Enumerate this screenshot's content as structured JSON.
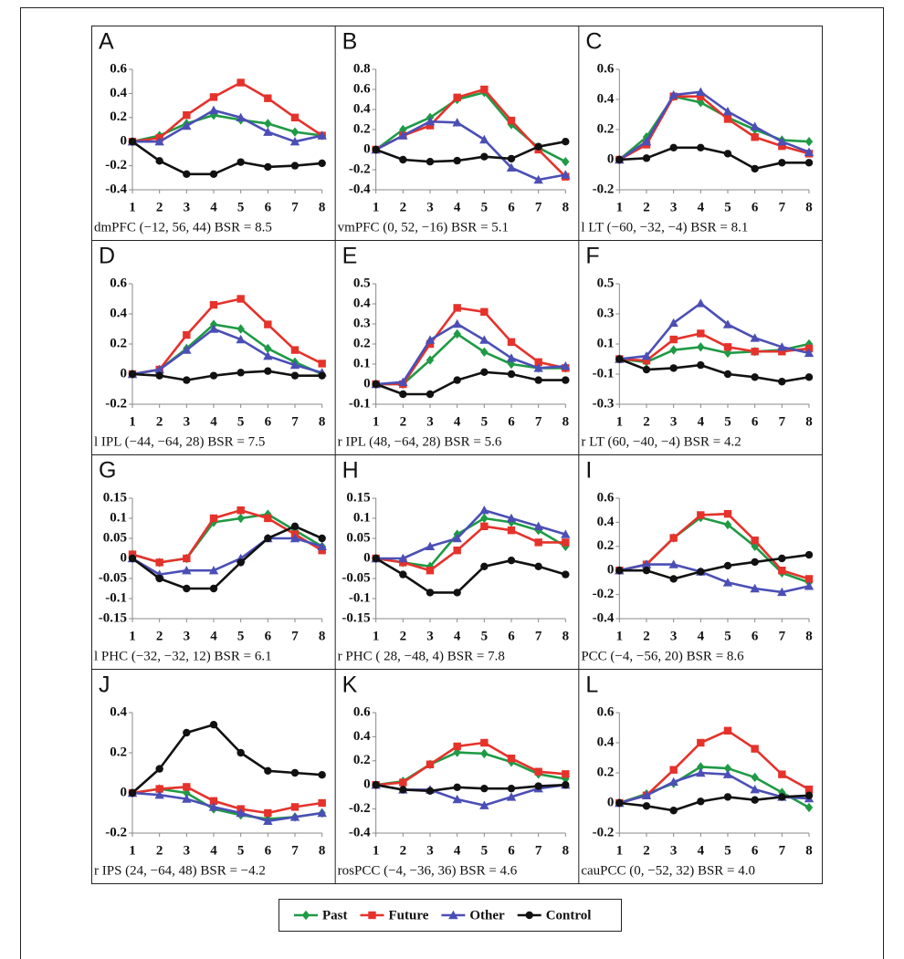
{
  "chart_data": [
    {
      "type": "line",
      "title": "A",
      "caption": "dmPFC (−12, 56, 44) BSR = 8.5",
      "x": [
        1,
        2,
        3,
        4,
        5,
        6,
        7,
        8
      ],
      "xlim": [
        1,
        8
      ],
      "xticks": [
        1,
        2,
        3,
        4,
        5,
        6,
        7,
        8
      ],
      "ylim": [
        -0.4,
        0.6
      ],
      "yticks": [
        -0.4,
        -0.2,
        0,
        0.2,
        0.4,
        0.6
      ],
      "series": [
        {
          "name": "Past",
          "color": "#1f9a45",
          "values": [
            0,
            0.05,
            0.15,
            0.22,
            0.18,
            0.15,
            0.08,
            0.05
          ]
        },
        {
          "name": "Future",
          "color": "#e5322b",
          "values": [
            0,
            0.03,
            0.22,
            0.37,
            0.49,
            0.36,
            0.2,
            0.05
          ]
        },
        {
          "name": "Other",
          "color": "#4b4fb5",
          "values": [
            0,
            0.0,
            0.13,
            0.26,
            0.2,
            0.08,
            0.0,
            0.05
          ]
        },
        {
          "name": "Control",
          "color": "#111111",
          "values": [
            0,
            -0.16,
            -0.27,
            -0.27,
            -0.17,
            -0.21,
            -0.2,
            -0.18
          ]
        }
      ]
    },
    {
      "type": "line",
      "title": "B",
      "caption": "vmPFC (0, 52, −16) BSR = 5.1",
      "x": [
        1,
        2,
        3,
        4,
        5,
        6,
        7,
        8
      ],
      "xlim": [
        1,
        8
      ],
      "xticks": [
        1,
        2,
        3,
        4,
        5,
        6,
        7,
        8
      ],
      "ylim": [
        -0.4,
        0.8
      ],
      "yticks": [
        -0.4,
        -0.2,
        0,
        0.2,
        0.4,
        0.6,
        0.8
      ],
      "series": [
        {
          "name": "Past",
          "color": "#1f9a45",
          "values": [
            0,
            0.2,
            0.32,
            0.5,
            0.57,
            0.25,
            0.02,
            -0.12
          ]
        },
        {
          "name": "Future",
          "color": "#e5322b",
          "values": [
            0,
            0.14,
            0.24,
            0.52,
            0.6,
            0.29,
            0.0,
            -0.27
          ]
        },
        {
          "name": "Other",
          "color": "#4b4fb5",
          "values": [
            0,
            0.14,
            0.28,
            0.27,
            0.1,
            -0.18,
            -0.3,
            -0.25
          ]
        },
        {
          "name": "Control",
          "color": "#111111",
          "values": [
            0,
            -0.1,
            -0.12,
            -0.11,
            -0.07,
            -0.09,
            0.03,
            0.08
          ]
        }
      ]
    },
    {
      "type": "line",
      "title": "C",
      "caption": "l LT (−60, −32, −4) BSR = 8.1",
      "x": [
        1,
        2,
        3,
        4,
        5,
        6,
        7,
        8
      ],
      "xlim": [
        1,
        8
      ],
      "xticks": [
        1,
        2,
        3,
        4,
        5,
        6,
        7,
        8
      ],
      "ylim": [
        -0.2,
        0.6
      ],
      "yticks": [
        -0.2,
        0,
        0.2,
        0.4,
        0.6
      ],
      "series": [
        {
          "name": "Past",
          "color": "#1f9a45",
          "values": [
            0,
            0.15,
            0.42,
            0.38,
            0.28,
            0.2,
            0.13,
            0.12
          ]
        },
        {
          "name": "Future",
          "color": "#e5322b",
          "values": [
            0,
            0.1,
            0.42,
            0.42,
            0.27,
            0.15,
            0.09,
            0.04
          ]
        },
        {
          "name": "Other",
          "color": "#4b4fb5",
          "values": [
            0,
            0.12,
            0.43,
            0.45,
            0.32,
            0.22,
            0.12,
            0.05
          ]
        },
        {
          "name": "Control",
          "color": "#111111",
          "values": [
            0,
            0.01,
            0.08,
            0.08,
            0.04,
            -0.06,
            -0.02,
            -0.02
          ]
        }
      ]
    },
    {
      "type": "line",
      "title": "D",
      "caption": "l IPL (−44, −64, 28) BSR = 7.5",
      "x": [
        1,
        2,
        3,
        4,
        5,
        6,
        7,
        8
      ],
      "xlim": [
        1,
        8
      ],
      "xticks": [
        1,
        2,
        3,
        4,
        5,
        6,
        7,
        8
      ],
      "ylim": [
        -0.2,
        0.6
      ],
      "yticks": [
        -0.2,
        0,
        0.2,
        0.4,
        0.6
      ],
      "series": [
        {
          "name": "Past",
          "color": "#1f9a45",
          "values": [
            0,
            0.03,
            0.17,
            0.33,
            0.3,
            0.17,
            0.08,
            0.0
          ]
        },
        {
          "name": "Future",
          "color": "#e5322b",
          "values": [
            0,
            0.03,
            0.26,
            0.46,
            0.5,
            0.33,
            0.16,
            0.07
          ]
        },
        {
          "name": "Other",
          "color": "#4b4fb5",
          "values": [
            0,
            0.03,
            0.16,
            0.3,
            0.23,
            0.12,
            0.06,
            0.01
          ]
        },
        {
          "name": "Control",
          "color": "#111111",
          "values": [
            0,
            -0.01,
            -0.04,
            -0.01,
            0.01,
            0.02,
            -0.01,
            -0.01
          ]
        }
      ]
    },
    {
      "type": "line",
      "title": "E",
      "caption": "r IPL (48, −64, 28) BSR = 5.6",
      "x": [
        1,
        2,
        3,
        4,
        5,
        6,
        7,
        8
      ],
      "xlim": [
        1,
        8
      ],
      "xticks": [
        1,
        2,
        3,
        4,
        5,
        6,
        7,
        8
      ],
      "ylim": [
        -0.1,
        0.5
      ],
      "yticks": [
        -0.1,
        0,
        0.1,
        0.2,
        0.3,
        0.4,
        0.5
      ],
      "series": [
        {
          "name": "Past",
          "color": "#1f9a45",
          "values": [
            0,
            0.0,
            0.12,
            0.25,
            0.16,
            0.1,
            0.08,
            0.08
          ]
        },
        {
          "name": "Future",
          "color": "#e5322b",
          "values": [
            0,
            0.0,
            0.2,
            0.38,
            0.36,
            0.21,
            0.11,
            0.08
          ]
        },
        {
          "name": "Other",
          "color": "#4b4fb5",
          "values": [
            0,
            0.01,
            0.22,
            0.3,
            0.22,
            0.13,
            0.08,
            0.09
          ]
        },
        {
          "name": "Control",
          "color": "#111111",
          "values": [
            0,
            -0.05,
            -0.05,
            0.02,
            0.06,
            0.05,
            0.02,
            0.02
          ]
        }
      ]
    },
    {
      "type": "line",
      "title": "F",
      "caption": "r LT (60, −40, −4) BSR = 4.2",
      "x": [
        1,
        2,
        3,
        4,
        5,
        6,
        7,
        8
      ],
      "xlim": [
        1,
        8
      ],
      "xticks": [
        1,
        2,
        3,
        4,
        5,
        6,
        7,
        8
      ],
      "ylim": [
        -0.3,
        0.5
      ],
      "yticks": [
        -0.3,
        -0.1,
        0.1,
        0.3,
        0.5
      ],
      "series": [
        {
          "name": "Past",
          "color": "#1f9a45",
          "values": [
            0,
            -0.02,
            0.06,
            0.08,
            0.04,
            0.05,
            0.06,
            0.1
          ]
        },
        {
          "name": "Future",
          "color": "#e5322b",
          "values": [
            0,
            -0.01,
            0.13,
            0.17,
            0.08,
            0.05,
            0.05,
            0.07
          ]
        },
        {
          "name": "Other",
          "color": "#4b4fb5",
          "values": [
            0,
            0.02,
            0.24,
            0.37,
            0.23,
            0.14,
            0.08,
            0.04
          ]
        },
        {
          "name": "Control",
          "color": "#111111",
          "values": [
            0,
            -0.07,
            -0.06,
            -0.04,
            -0.1,
            -0.12,
            -0.15,
            -0.12
          ]
        }
      ]
    },
    {
      "type": "line",
      "title": "G",
      "caption": "l PHC (−32, −32, 12) BSR = 6.1",
      "x": [
        1,
        2,
        3,
        4,
        5,
        6,
        7,
        8
      ],
      "xlim": [
        1,
        8
      ],
      "xticks": [
        1,
        2,
        3,
        4,
        5,
        6,
        7,
        8
      ],
      "ylim": [
        -0.15,
        0.15
      ],
      "yticks": [
        -0.15,
        -0.1,
        -0.05,
        0,
        0.05,
        0.1,
        0.15
      ],
      "series": [
        {
          "name": "Past",
          "color": "#1f9a45",
          "values": [
            0.01,
            -0.01,
            0.0,
            0.09,
            0.1,
            0.11,
            0.07,
            0.03
          ]
        },
        {
          "name": "Future",
          "color": "#e5322b",
          "values": [
            0.01,
            -0.01,
            0.0,
            0.1,
            0.12,
            0.1,
            0.06,
            0.02
          ]
        },
        {
          "name": "Other",
          "color": "#4b4fb5",
          "values": [
            0,
            -0.04,
            -0.03,
            -0.03,
            0.0,
            0.05,
            0.05,
            0.03
          ]
        },
        {
          "name": "Control",
          "color": "#111111",
          "values": [
            0,
            -0.05,
            -0.075,
            -0.075,
            -0.01,
            0.05,
            0.08,
            0.05
          ]
        }
      ]
    },
    {
      "type": "line",
      "title": "H",
      "caption": "r PHC ( 28, −48, 4) BSR = 7.8",
      "x": [
        1,
        2,
        3,
        4,
        5,
        6,
        7,
        8
      ],
      "xlim": [
        1,
        8
      ],
      "xticks": [
        1,
        2,
        3,
        4,
        5,
        6,
        7,
        8
      ],
      "ylim": [
        -0.15,
        0.15
      ],
      "yticks": [
        -0.15,
        -0.1,
        -0.05,
        0,
        0.05,
        0.1,
        0.15
      ],
      "series": [
        {
          "name": "Past",
          "color": "#1f9a45",
          "values": [
            0,
            -0.01,
            -0.02,
            0.06,
            0.1,
            0.09,
            0.07,
            0.03
          ]
        },
        {
          "name": "Future",
          "color": "#e5322b",
          "values": [
            0,
            -0.01,
            -0.03,
            0.02,
            0.08,
            0.07,
            0.04,
            0.04
          ]
        },
        {
          "name": "Other",
          "color": "#4b4fb5",
          "values": [
            0,
            0.0,
            0.03,
            0.05,
            0.12,
            0.1,
            0.08,
            0.06
          ]
        },
        {
          "name": "Control",
          "color": "#111111",
          "values": [
            0,
            -0.04,
            -0.085,
            -0.085,
            -0.02,
            -0.005,
            -0.02,
            -0.04
          ]
        }
      ]
    },
    {
      "type": "line",
      "title": "I",
      "caption": "PCC (−4, −56, 20) BSR = 8.6",
      "x": [
        1,
        2,
        3,
        4,
        5,
        6,
        7,
        8
      ],
      "xlim": [
        1,
        8
      ],
      "xticks": [
        1,
        2,
        3,
        4,
        5,
        6,
        7,
        8
      ],
      "ylim": [
        -0.4,
        0.6
      ],
      "yticks": [
        -0.4,
        -0.2,
        0,
        0.2,
        0.4,
        0.6
      ],
      "series": [
        {
          "name": "Past",
          "color": "#1f9a45",
          "values": [
            0,
            0.05,
            0.27,
            0.44,
            0.38,
            0.2,
            -0.02,
            -0.1
          ]
        },
        {
          "name": "Future",
          "color": "#e5322b",
          "values": [
            0,
            0.05,
            0.27,
            0.46,
            0.47,
            0.25,
            0.0,
            -0.07
          ]
        },
        {
          "name": "Other",
          "color": "#4b4fb5",
          "values": [
            0,
            0.05,
            0.05,
            -0.01,
            -0.1,
            -0.15,
            -0.18,
            -0.13
          ]
        },
        {
          "name": "Control",
          "color": "#111111",
          "values": [
            0,
            0.0,
            -0.07,
            -0.01,
            0.04,
            0.07,
            0.1,
            0.13
          ]
        }
      ]
    },
    {
      "type": "line",
      "title": "J",
      "caption": "r IPS (24, −64, 48) BSR = −4.2",
      "x": [
        1,
        2,
        3,
        4,
        5,
        6,
        7,
        8
      ],
      "xlim": [
        1,
        8
      ],
      "xticks": [
        1,
        2,
        3,
        4,
        5,
        6,
        7,
        8
      ],
      "ylim": [
        -0.2,
        0.4
      ],
      "yticks": [
        -0.2,
        0,
        0.2,
        0.4
      ],
      "series": [
        {
          "name": "Past",
          "color": "#1f9a45",
          "values": [
            0,
            0.02,
            0.0,
            -0.08,
            -0.11,
            -0.13,
            -0.12,
            -0.1
          ]
        },
        {
          "name": "Future",
          "color": "#e5322b",
          "values": [
            0,
            0.02,
            0.03,
            -0.04,
            -0.08,
            -0.1,
            -0.07,
            -0.05
          ]
        },
        {
          "name": "Other",
          "color": "#4b4fb5",
          "values": [
            0,
            -0.01,
            -0.03,
            -0.07,
            -0.1,
            -0.14,
            -0.12,
            -0.1
          ]
        },
        {
          "name": "Control",
          "color": "#111111",
          "values": [
            0,
            0.12,
            0.3,
            0.34,
            0.2,
            0.11,
            0.1,
            0.09
          ]
        }
      ]
    },
    {
      "type": "line",
      "title": "K",
      "caption": "rosPCC (−4, −36, 36) BSR = 4.6",
      "x": [
        1,
        2,
        3,
        4,
        5,
        6,
        7,
        8
      ],
      "xlim": [
        1,
        8
      ],
      "xticks": [
        1,
        2,
        3,
        4,
        5,
        6,
        7,
        8
      ],
      "ylim": [
        -0.4,
        0.6
      ],
      "yticks": [
        -0.4,
        -0.2,
        0,
        0.2,
        0.4,
        0.6
      ],
      "series": [
        {
          "name": "Past",
          "color": "#1f9a45",
          "values": [
            0,
            0.03,
            0.17,
            0.27,
            0.26,
            0.19,
            0.09,
            0.05
          ]
        },
        {
          "name": "Future",
          "color": "#e5322b",
          "values": [
            0,
            0.02,
            0.17,
            0.32,
            0.35,
            0.22,
            0.11,
            0.09
          ]
        },
        {
          "name": "Other",
          "color": "#4b4fb5",
          "values": [
            0,
            -0.04,
            -0.04,
            -0.12,
            -0.17,
            -0.1,
            -0.03,
            0.0
          ]
        },
        {
          "name": "Control",
          "color": "#111111",
          "values": [
            0,
            -0.04,
            -0.05,
            -0.02,
            -0.03,
            -0.03,
            -0.01,
            0.0
          ]
        }
      ]
    },
    {
      "type": "line",
      "title": "L",
      "caption": "cauPCC (0, −52, 32) BSR = 4.0",
      "x": [
        1,
        2,
        3,
        4,
        5,
        6,
        7,
        8
      ],
      "xlim": [
        1,
        8
      ],
      "xticks": [
        1,
        2,
        3,
        4,
        5,
        6,
        7,
        8
      ],
      "ylim": [
        -0.2,
        0.6
      ],
      "yticks": [
        -0.2,
        0,
        0.2,
        0.4,
        0.6
      ],
      "series": [
        {
          "name": "Past",
          "color": "#1f9a45",
          "values": [
            0,
            0.06,
            0.13,
            0.24,
            0.23,
            0.17,
            0.07,
            -0.03
          ]
        },
        {
          "name": "Future",
          "color": "#e5322b",
          "values": [
            0,
            0.05,
            0.22,
            0.4,
            0.48,
            0.36,
            0.19,
            0.09
          ]
        },
        {
          "name": "Other",
          "color": "#4b4fb5",
          "values": [
            0,
            0.05,
            0.14,
            0.2,
            0.19,
            0.09,
            0.04,
            0.03
          ]
        },
        {
          "name": "Control",
          "color": "#111111",
          "values": [
            0,
            -0.02,
            -0.05,
            0.01,
            0.04,
            0.02,
            0.04,
            0.05
          ]
        }
      ]
    }
  ]
}
